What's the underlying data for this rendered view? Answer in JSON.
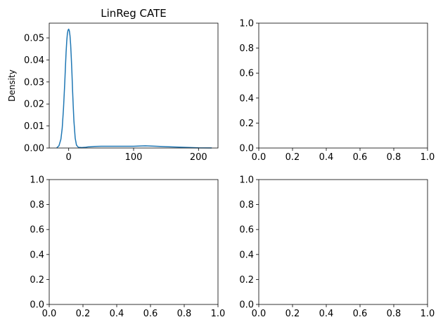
{
  "chart_data": [
    {
      "type": "line",
      "title": "LinReg CATE",
      "xlabel": "",
      "ylabel": "Density",
      "xlim": [
        -30,
        230
      ],
      "ylim": [
        0,
        0.0567
      ],
      "xticks": [
        0,
        100,
        200
      ],
      "xtick_labels": [
        "0",
        "100",
        "200"
      ],
      "yticks": [
        0,
        0.01,
        0.02,
        0.03,
        0.04,
        0.05
      ],
      "ytick_labels": [
        "0.00",
        "0.01",
        "0.02",
        "0.03",
        "0.04",
        "0.05"
      ],
      "grid": false,
      "legend": "none",
      "series": [
        {
          "color": "#1f77b4",
          "x": [
            -18,
            -15,
            -12,
            -10,
            -8,
            -6,
            -5,
            -4,
            -3,
            -2,
            -1,
            0,
            1,
            2,
            3,
            4,
            5,
            6,
            7,
            8,
            10,
            12,
            15,
            20,
            25,
            30,
            40,
            50,
            60,
            70,
            80,
            90,
            100,
            110,
            118,
            125,
            135,
            150,
            170,
            200,
            220
          ],
          "y": [
            0.0002,
            0.001,
            0.004,
            0.009,
            0.018,
            0.03,
            0.037,
            0.0435,
            0.0485,
            0.052,
            0.0535,
            0.054,
            0.0532,
            0.051,
            0.047,
            0.041,
            0.034,
            0.026,
            0.019,
            0.0125,
            0.0045,
            0.0013,
            0.0003,
            0.0002,
            0.0003,
            0.0005,
            0.0007,
            0.0008,
            0.0008,
            0.0008,
            0.0008,
            0.0008,
            0.0008,
            0.0009,
            0.001,
            0.0009,
            0.0008,
            0.0006,
            0.0004,
            0.0001,
            3e-05
          ]
        }
      ]
    },
    {
      "type": "line",
      "title": "",
      "xlabel": "",
      "ylabel": "",
      "xlim": [
        0,
        1
      ],
      "ylim": [
        0,
        1
      ],
      "xticks": [
        0,
        0.2,
        0.4,
        0.6,
        0.8,
        1.0
      ],
      "xtick_labels": [
        "0.0",
        "0.2",
        "0.4",
        "0.6",
        "0.8",
        "1.0"
      ],
      "yticks": [
        0,
        0.2,
        0.4,
        0.6,
        0.8,
        1.0
      ],
      "ytick_labels": [
        "0.0",
        "0.2",
        "0.4",
        "0.6",
        "0.8",
        "1.0"
      ],
      "grid": false,
      "legend": "none",
      "series": []
    },
    {
      "type": "line",
      "title": "",
      "xlabel": "",
      "ylabel": "",
      "xlim": [
        0,
        1
      ],
      "ylim": [
        0,
        1
      ],
      "xticks": [
        0,
        0.2,
        0.4,
        0.6,
        0.8,
        1.0
      ],
      "xtick_labels": [
        "0.0",
        "0.2",
        "0.4",
        "0.6",
        "0.8",
        "1.0"
      ],
      "yticks": [
        0,
        0.2,
        0.4,
        0.6,
        0.8,
        1.0
      ],
      "ytick_labels": [
        "0.0",
        "0.2",
        "0.4",
        "0.6",
        "0.8",
        "1.0"
      ],
      "grid": false,
      "legend": "none",
      "series": []
    },
    {
      "type": "line",
      "title": "",
      "xlabel": "",
      "ylabel": "",
      "xlim": [
        0,
        1
      ],
      "ylim": [
        0,
        1
      ],
      "xticks": [
        0,
        0.2,
        0.4,
        0.6,
        0.8,
        1.0
      ],
      "xtick_labels": [
        "0.0",
        "0.2",
        "0.4",
        "0.6",
        "0.8",
        "1.0"
      ],
      "yticks": [
        0,
        0.2,
        0.4,
        0.6,
        0.8,
        1.0
      ],
      "ytick_labels": [
        "0.0",
        "0.2",
        "0.4",
        "0.6",
        "0.8",
        "1.0"
      ],
      "grid": false,
      "legend": "none",
      "series": []
    }
  ]
}
